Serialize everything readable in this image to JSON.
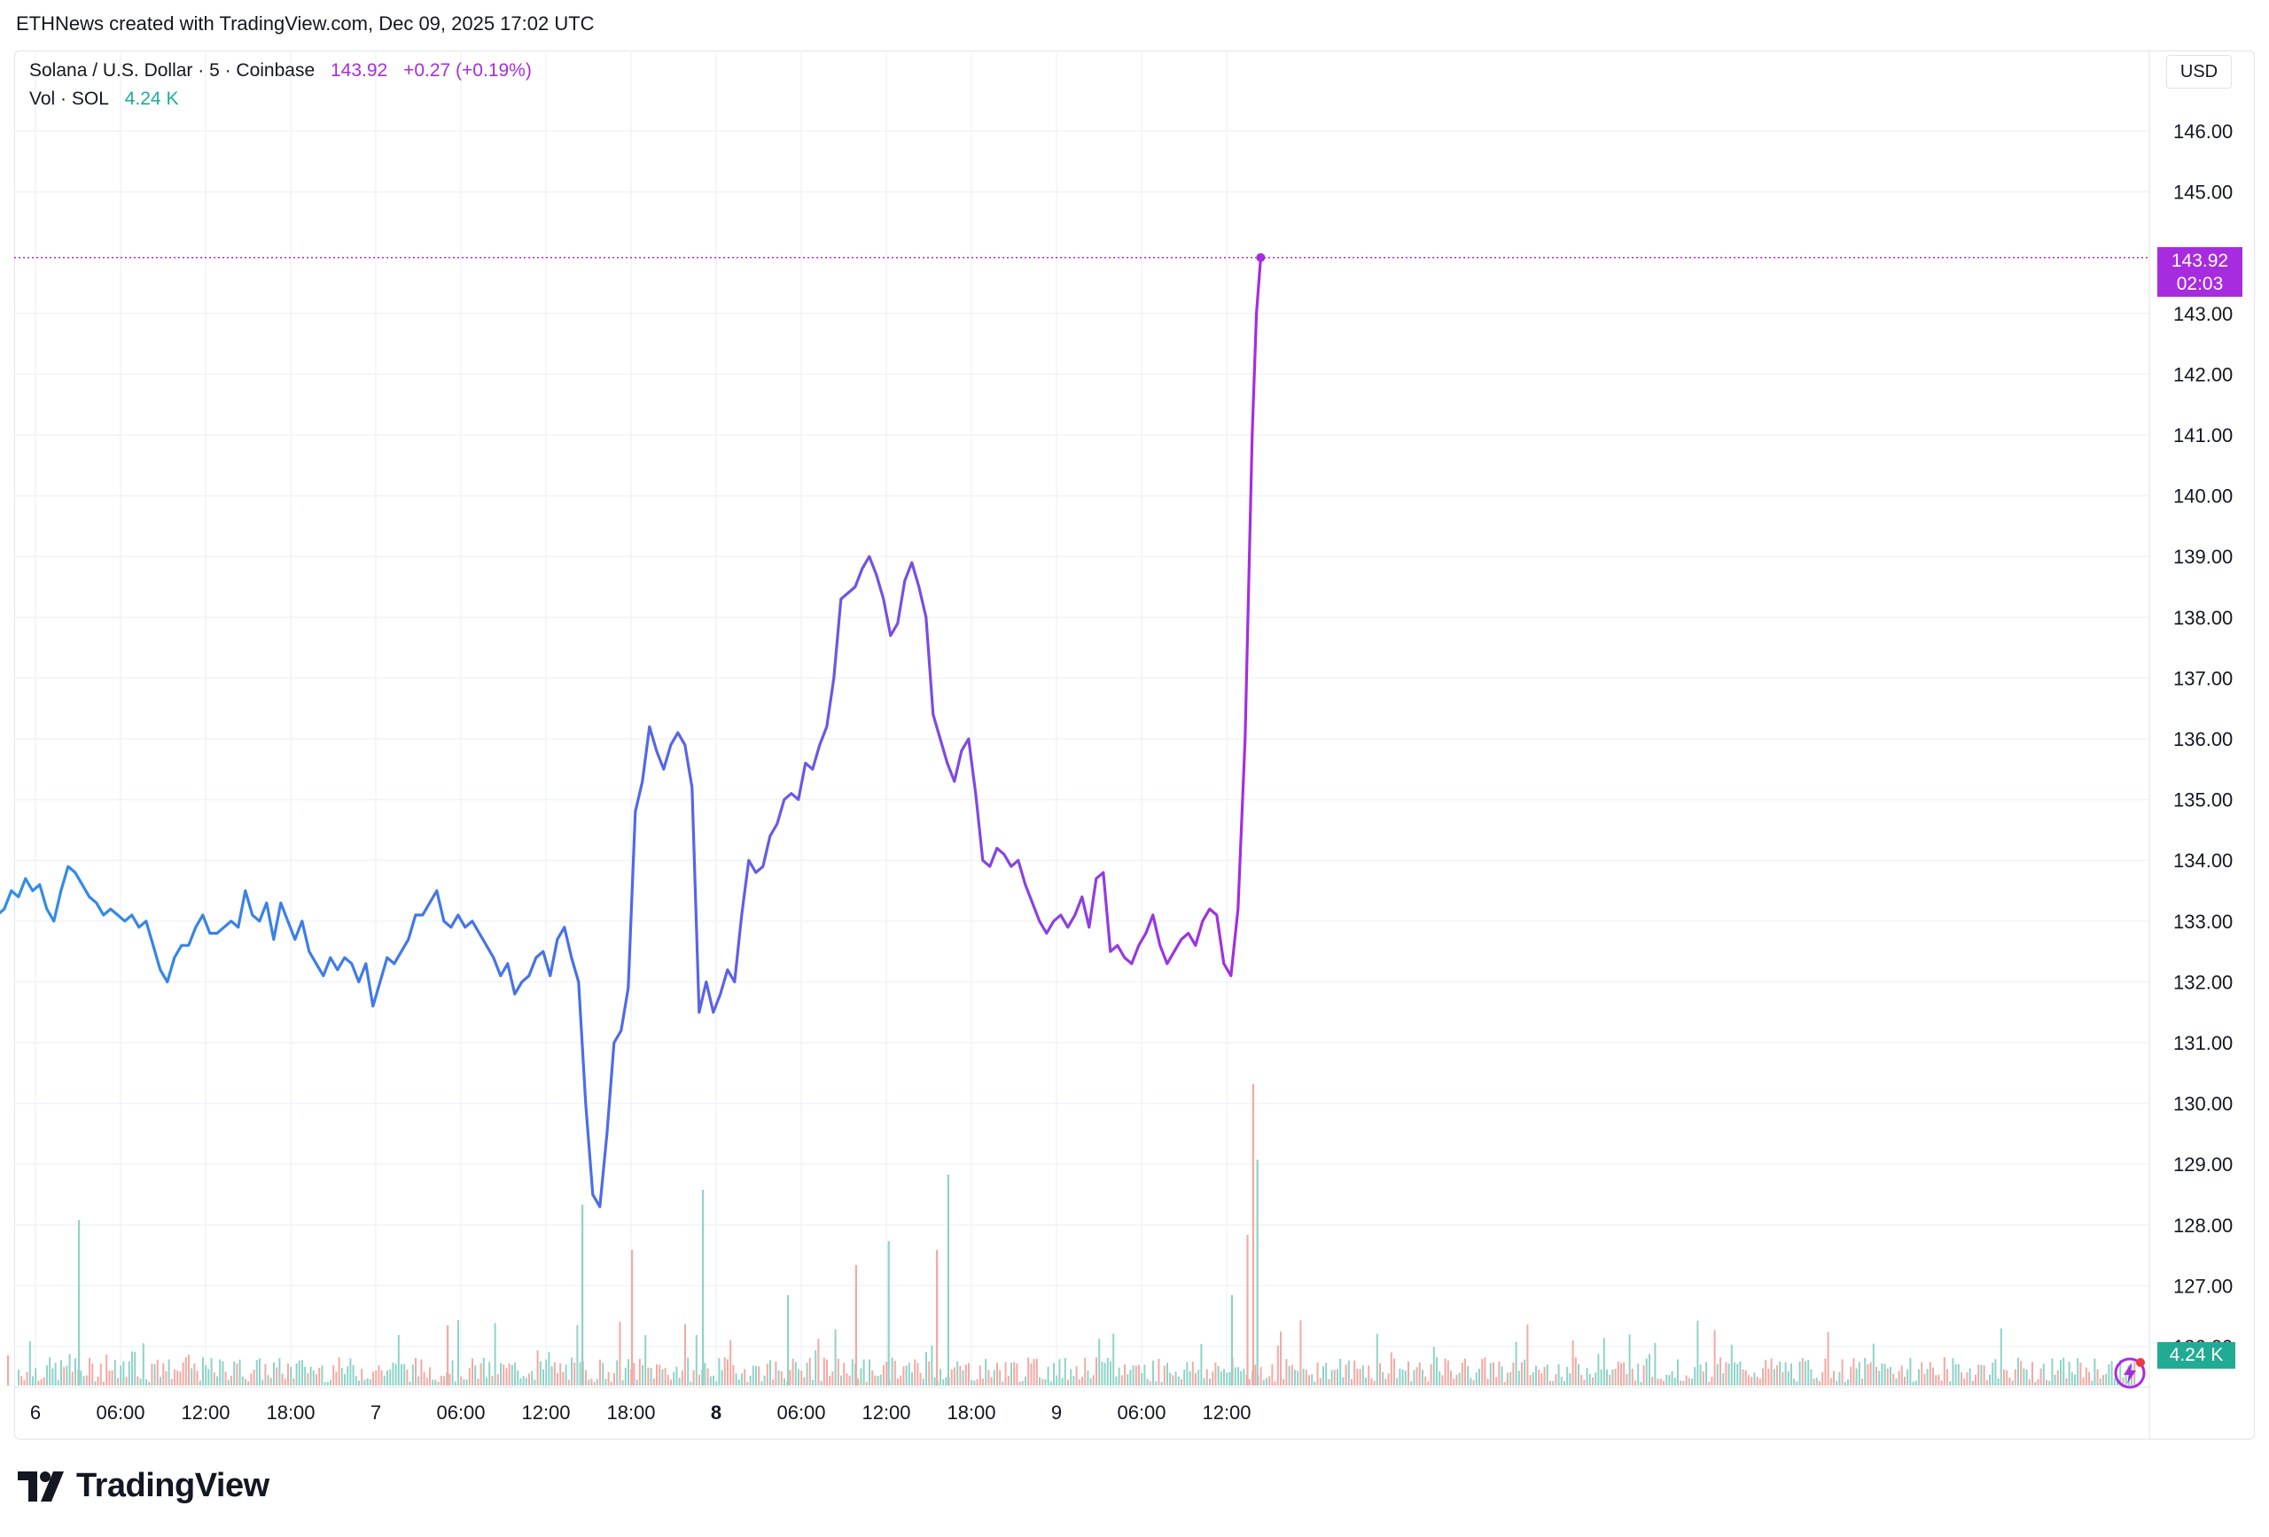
{
  "caption": "ETHNews created with TradingView.com, Dec 09, 2025 17:02 UTC",
  "legend": {
    "symbol": "Solana / U.S. Dollar · 5 · Coinbase",
    "last": "143.92",
    "change": "+0.27 (+0.19%)",
    "vol_label": "Vol · SOL",
    "vol_value": "4.24 K"
  },
  "currency": "USD",
  "last_price_tag": {
    "price": "143.92",
    "countdown": "02:03"
  },
  "volume_tag": "4.24 K",
  "logo_text": "TradingView",
  "colors": {
    "line_start": "#2f8fe6",
    "line_end": "#a72ce0",
    "last_price": "#a72ce0",
    "volume_up": "#8fd3c7",
    "volume_down": "#f4a9a4"
  },
  "chart_data": {
    "type": "line",
    "y_ticks": [
      "126.00",
      "127.00",
      "128.00",
      "129.00",
      "130.00",
      "131.00",
      "132.00",
      "133.00",
      "134.00",
      "135.00",
      "136.00",
      "137.00",
      "138.00",
      "139.00",
      "140.00",
      "141.00",
      "142.00",
      "143.00",
      "145.00",
      "146.00"
    ],
    "x_ticks": [
      "6",
      "06:00",
      "12:00",
      "18:00",
      "7",
      "06:00",
      "12:00",
      "18:00",
      "8",
      "06:00",
      "12:00",
      "18:00",
      "9",
      "06:00",
      "12:00"
    ],
    "ylim": [
      125.6,
      146.4
    ],
    "x_unit": "hours from 2025-12-06 00:00 UTC",
    "x_range": [
      -3.3,
      86.5
    ],
    "grid": true,
    "series": [
      {
        "name": "SOL/USD",
        "points": [
          [
            -3.2,
            132.6
          ],
          [
            -2.7,
            133.1
          ],
          [
            -2.2,
            133.2
          ],
          [
            -1.7,
            133.5
          ],
          [
            -1.2,
            133.4
          ],
          [
            -0.7,
            133.7
          ],
          [
            -0.2,
            133.5
          ],
          [
            0.3,
            133.6
          ],
          [
            0.8,
            133.2
          ],
          [
            1.3,
            133.0
          ],
          [
            1.8,
            133.5
          ],
          [
            2.3,
            133.9
          ],
          [
            2.8,
            133.8
          ],
          [
            3.3,
            133.6
          ],
          [
            3.8,
            133.4
          ],
          [
            4.3,
            133.3
          ],
          [
            4.8,
            133.1
          ],
          [
            5.3,
            133.2
          ],
          [
            5.8,
            133.1
          ],
          [
            6.3,
            133.0
          ],
          [
            6.8,
            133.1
          ],
          [
            7.3,
            132.9
          ],
          [
            7.8,
            133.0
          ],
          [
            8.3,
            132.6
          ],
          [
            8.8,
            132.2
          ],
          [
            9.3,
            132.0
          ],
          [
            9.8,
            132.4
          ],
          [
            10.3,
            132.6
          ],
          [
            10.8,
            132.6
          ],
          [
            11.3,
            132.9
          ],
          [
            11.8,
            133.1
          ],
          [
            12.3,
            132.8
          ],
          [
            12.8,
            132.8
          ],
          [
            13.3,
            132.9
          ],
          [
            13.8,
            133.0
          ],
          [
            14.3,
            132.9
          ],
          [
            14.8,
            133.5
          ],
          [
            15.3,
            133.1
          ],
          [
            15.8,
            133.0
          ],
          [
            16.3,
            133.3
          ],
          [
            16.8,
            132.7
          ],
          [
            17.3,
            133.3
          ],
          [
            17.8,
            133.0
          ],
          [
            18.3,
            132.7
          ],
          [
            18.8,
            133.0
          ],
          [
            19.3,
            132.5
          ],
          [
            19.8,
            132.3
          ],
          [
            20.3,
            132.1
          ],
          [
            20.8,
            132.4
          ],
          [
            21.3,
            132.2
          ],
          [
            21.8,
            132.4
          ],
          [
            22.3,
            132.3
          ],
          [
            22.8,
            132.0
          ],
          [
            23.3,
            132.3
          ],
          [
            23.8,
            131.6
          ],
          [
            24.3,
            132.0
          ],
          [
            24.8,
            132.4
          ],
          [
            25.3,
            132.3
          ],
          [
            25.8,
            132.5
          ],
          [
            26.3,
            132.7
          ],
          [
            26.8,
            133.1
          ],
          [
            27.3,
            133.1
          ],
          [
            27.8,
            133.3
          ],
          [
            28.3,
            133.5
          ],
          [
            28.8,
            133.0
          ],
          [
            29.3,
            132.9
          ],
          [
            29.8,
            133.1
          ],
          [
            30.3,
            132.9
          ],
          [
            30.8,
            133.0
          ],
          [
            31.3,
            132.8
          ],
          [
            31.8,
            132.6
          ],
          [
            32.3,
            132.4
          ],
          [
            32.8,
            132.1
          ],
          [
            33.3,
            132.3
          ],
          [
            33.8,
            131.8
          ],
          [
            34.3,
            132.0
          ],
          [
            34.8,
            132.1
          ],
          [
            35.3,
            132.4
          ],
          [
            35.8,
            132.5
          ],
          [
            36.3,
            132.1
          ],
          [
            36.8,
            132.7
          ],
          [
            37.3,
            132.9
          ],
          [
            37.8,
            132.4
          ],
          [
            38.3,
            132.0
          ],
          [
            38.8,
            130.0
          ],
          [
            39.3,
            128.5
          ],
          [
            39.8,
            128.3
          ],
          [
            40.3,
            129.5
          ],
          [
            40.8,
            131.0
          ],
          [
            41.3,
            131.2
          ],
          [
            41.8,
            131.9
          ],
          [
            42.3,
            134.8
          ],
          [
            42.8,
            135.3
          ],
          [
            43.3,
            136.2
          ],
          [
            43.8,
            135.8
          ],
          [
            44.3,
            135.5
          ],
          [
            44.8,
            135.9
          ],
          [
            45.3,
            136.1
          ],
          [
            45.8,
            135.9
          ],
          [
            46.3,
            135.2
          ],
          [
            46.8,
            131.5
          ],
          [
            47.3,
            132.0
          ],
          [
            47.8,
            131.5
          ],
          [
            48.3,
            131.8
          ],
          [
            48.8,
            132.2
          ],
          [
            49.3,
            132.0
          ],
          [
            49.8,
            133.1
          ],
          [
            50.3,
            134.0
          ],
          [
            50.8,
            133.8
          ],
          [
            51.3,
            133.9
          ],
          [
            51.8,
            134.4
          ],
          [
            52.3,
            134.6
          ],
          [
            52.8,
            135.0
          ],
          [
            53.3,
            135.1
          ],
          [
            53.8,
            135.0
          ],
          [
            54.3,
            135.6
          ],
          [
            54.8,
            135.5
          ],
          [
            55.3,
            135.9
          ],
          [
            55.8,
            136.2
          ],
          [
            56.3,
            137.0
          ],
          [
            56.8,
            138.3
          ],
          [
            57.3,
            138.4
          ],
          [
            57.8,
            138.5
          ],
          [
            58.3,
            138.8
          ],
          [
            58.8,
            139.0
          ],
          [
            59.3,
            138.7
          ],
          [
            59.8,
            138.3
          ],
          [
            60.3,
            137.7
          ],
          [
            60.8,
            137.9
          ],
          [
            61.3,
            138.6
          ],
          [
            61.8,
            138.9
          ],
          [
            62.3,
            138.5
          ],
          [
            62.8,
            138.0
          ],
          [
            63.3,
            136.4
          ],
          [
            63.8,
            136.0
          ],
          [
            64.3,
            135.6
          ],
          [
            64.8,
            135.3
          ],
          [
            65.3,
            135.8
          ],
          [
            65.8,
            136.0
          ],
          [
            66.3,
            135.1
          ],
          [
            66.8,
            134.0
          ],
          [
            67.3,
            133.9
          ],
          [
            67.8,
            134.2
          ],
          [
            68.3,
            134.1
          ],
          [
            68.8,
            133.9
          ],
          [
            69.3,
            134.0
          ],
          [
            69.8,
            133.6
          ],
          [
            70.3,
            133.3
          ],
          [
            70.8,
            133.0
          ],
          [
            71.3,
            132.8
          ],
          [
            71.8,
            133.0
          ],
          [
            72.3,
            133.1
          ],
          [
            72.8,
            132.9
          ],
          [
            73.3,
            133.1
          ],
          [
            73.8,
            133.4
          ],
          [
            74.3,
            132.9
          ],
          [
            74.8,
            133.7
          ],
          [
            75.3,
            133.8
          ],
          [
            75.8,
            132.5
          ],
          [
            76.3,
            132.6
          ],
          [
            76.8,
            132.4
          ],
          [
            77.3,
            132.3
          ],
          [
            77.8,
            132.6
          ],
          [
            78.3,
            132.8
          ],
          [
            78.8,
            133.1
          ],
          [
            79.3,
            132.6
          ],
          [
            79.8,
            132.3
          ],
          [
            80.3,
            132.5
          ],
          [
            80.8,
            132.7
          ],
          [
            81.3,
            132.8
          ],
          [
            81.8,
            132.6
          ],
          [
            82.3,
            133.0
          ],
          [
            82.8,
            133.2
          ],
          [
            83.3,
            133.1
          ],
          [
            83.8,
            132.3
          ],
          [
            84.3,
            132.1
          ],
          [
            84.8,
            133.2
          ],
          [
            85.3,
            136.0
          ],
          [
            85.8,
            141.0
          ],
          [
            86.1,
            143.0
          ],
          [
            86.4,
            143.92
          ]
        ]
      }
    ],
    "volume_spikes_hours": [
      [
        3.0,
        0.55
      ],
      [
        -2.0,
        0.1
      ],
      [
        38.5,
        0.6
      ],
      [
        42.0,
        0.45
      ],
      [
        47.0,
        0.65
      ],
      [
        63.5,
        0.45
      ],
      [
        64.3,
        0.7
      ],
      [
        85.8,
        1.0
      ],
      [
        86.1,
        0.75
      ],
      [
        85.4,
        0.5
      ],
      [
        84.3,
        0.3
      ],
      [
        29.0,
        0.2
      ],
      [
        53.0,
        0.3
      ],
      [
        57.8,
        0.4
      ],
      [
        60.1,
        0.48
      ]
    ]
  }
}
